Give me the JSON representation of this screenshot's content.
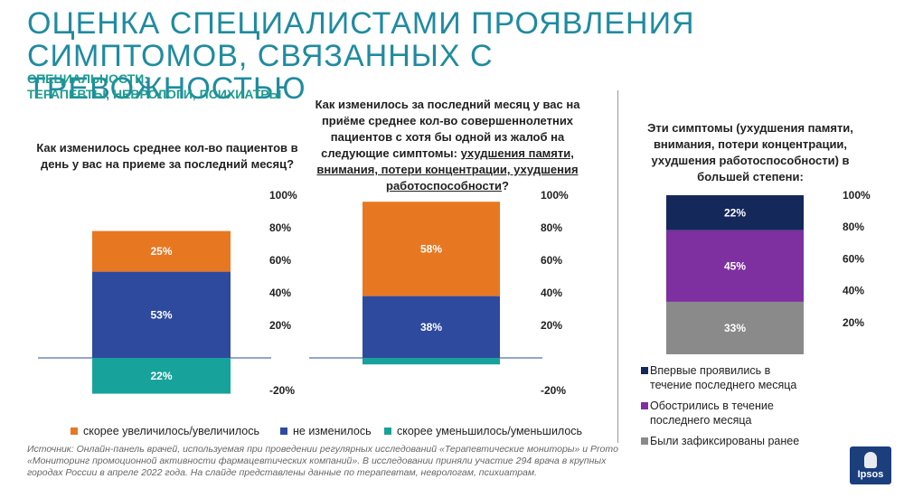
{
  "header": {
    "title_line1": "ОЦЕНКА СПЕЦИАЛИСТАМИ ПРОЯВЛЕНИЯ",
    "title_line2": "СИМПТОМОВ, СВЯЗАННЫХ С ТРЕВОЖНОСТЬЮ",
    "specialties_line1": "СПЕЦИАЛЬНОСТИ:",
    "specialties_line2": "ТЕРАПЕВТЫ, НЕВРОЛОГИ, ПСИХИАТРЫ"
  },
  "questions": {
    "q1": "Как изменилось среднее кол-во пациентов в день у вас на приеме за последний месяц?",
    "q2_plain": "Как изменилось за последний месяц у вас на приёме среднее кол-во совершеннолетних пациентов с хотя бы одной из жалоб на следующие симптомы: ",
    "q2_underlined": "ухудшения памяти, внимания, потери концентрации, ухудшения работоспособности",
    "q2_end": "?",
    "q3": "Эти симптомы (ухудшения памяти, внимания, потери концентрации, ухудшения работоспособности) в большей степени:"
  },
  "legend_main": {
    "increased": "скорее увеличилось/увеличилось",
    "unchanged": "не изменилось",
    "decreased": "скорее уменьшилось/уменьшилось"
  },
  "legend_right": {
    "first_time": "Впервые проявились в течение последнего месяца",
    "worsened": "Обострились в течение последнего месяца",
    "earlier": "Были зафиксированы ранее"
  },
  "source": "Источник: Онлайн-панель врачей, используемая  при проведении регулярных исследований «Терапевтические мониторы» и Promo «Мониторинг промоционной активности фармацевтических компаний». В исследовании приняли участие 294 врача в крупных городах России в апреле 2022 года. На слайде представлены данные по терапевтам, неврологам, психиатрам.",
  "logo_text": "Ipsos",
  "colors": {
    "increased": "#e87722",
    "unchanged": "#2e4a9e",
    "decreased": "#17a39b",
    "first_time": "#14285a",
    "worsened": "#7e2fa0",
    "earlier": "#8a8a8a",
    "title": "#1f8ba0"
  },
  "chart_data": [
    {
      "type": "bar",
      "stacked": true,
      "ylim": [
        -20,
        100
      ],
      "yticks": [
        "100%",
        "80%",
        "60%",
        "40%",
        "20%",
        "-20%"
      ],
      "categories": [
        ""
      ],
      "series": [
        {
          "name": "скорее увеличилось/увеличилось",
          "values": [
            25
          ],
          "label": "25%"
        },
        {
          "name": "не изменилось",
          "values": [
            53
          ],
          "label": "53%"
        },
        {
          "name": "скорее уменьшилось/уменьшилось",
          "values": [
            -22
          ],
          "label": "22%"
        }
      ]
    },
    {
      "type": "bar",
      "stacked": true,
      "ylim": [
        -20,
        100
      ],
      "yticks": [
        "100%",
        "80%",
        "60%",
        "40%",
        "20%",
        "-20%"
      ],
      "categories": [
        ""
      ],
      "series": [
        {
          "name": "скорее увеличилось/увеличилось",
          "values": [
            58
          ],
          "label": "58%"
        },
        {
          "name": "не изменилось",
          "values": [
            38
          ],
          "label": "38%"
        },
        {
          "name": "скорее уменьшилось/уменьшилось",
          "values": [
            -4
          ],
          "label": ""
        }
      ]
    },
    {
      "type": "bar",
      "stacked": true,
      "ylim": [
        0,
        100
      ],
      "yticks": [
        "100%",
        "80%",
        "60%",
        "40%",
        "20%"
      ],
      "categories": [
        ""
      ],
      "series": [
        {
          "name": "Впервые проявились в течение последнего месяца",
          "values": [
            22
          ],
          "label": "22%"
        },
        {
          "name": "Обострились в течение последнего месяца",
          "values": [
            45
          ],
          "label": "45%"
        },
        {
          "name": "Были зафиксированы ранее",
          "values": [
            33
          ],
          "label": "33%"
        }
      ]
    }
  ]
}
